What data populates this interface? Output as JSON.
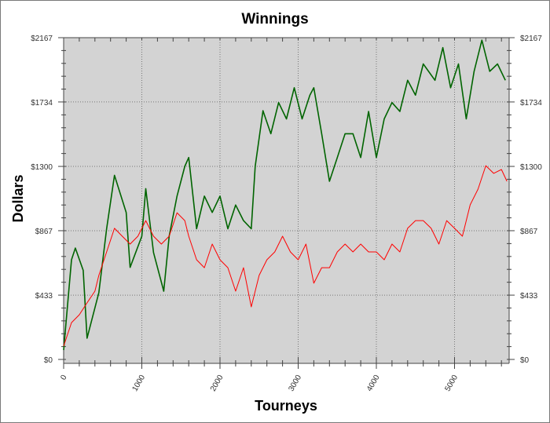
{
  "chart_data": {
    "type": "line",
    "title": "Winnings",
    "xlabel": "Tourneys",
    "ylabel": "Dollars",
    "xlim": [
      0,
      5700
    ],
    "ylim": [
      0,
      2167
    ],
    "x_ticks": [
      0,
      1000,
      2000,
      3000,
      4000,
      5000
    ],
    "y_ticks": [
      0,
      433,
      867,
      1300,
      1734,
      2167
    ],
    "y_tick_labels": [
      "$0",
      "$433",
      "$867",
      "$1300",
      "$1734",
      "$2167"
    ],
    "grid": true,
    "background": "#d3d3d3",
    "series": [
      {
        "color": "#006400",
        "x": [
          0,
          100,
          150,
          250,
          300,
          450,
          550,
          650,
          800,
          850,
          1000,
          1050,
          1150,
          1280,
          1350,
          1450,
          1550,
          1600,
          1700,
          1800,
          1900,
          2000,
          2100,
          2200,
          2300,
          2400,
          2450,
          2550,
          2650,
          2750,
          2850,
          2950,
          3050,
          3150,
          3200,
          3300,
          3400,
          3500,
          3600,
          3700,
          3800,
          3900,
          4000,
          4100,
          4200,
          4300,
          4400,
          4500,
          4600,
          4750,
          4850,
          4950,
          5050,
          5150,
          5250,
          5350,
          5450,
          5550,
          5650
        ],
        "y": [
          63,
          671,
          750,
          600,
          143,
          450,
          880,
          1240,
          990,
          620,
          830,
          1150,
          720,
          460,
          830,
          1100,
          1300,
          1360,
          880,
          1100,
          990,
          1100,
          880,
          1040,
          935,
          880,
          1300,
          1675,
          1520,
          1730,
          1620,
          1830,
          1620,
          1780,
          1830,
          1520,
          1200,
          1360,
          1520,
          1520,
          1360,
          1670,
          1360,
          1620,
          1730,
          1670,
          1880,
          1780,
          1990,
          1880,
          2100,
          1830,
          1990,
          1620,
          1940,
          2150,
          1940,
          1990,
          1880
        ]
      },
      {
        "color": "#ff0000",
        "x": [
          0,
          100,
          200,
          300,
          400,
          450,
          550,
          650,
          750,
          850,
          950,
          1050,
          1150,
          1250,
          1350,
          1450,
          1550,
          1600,
          1700,
          1800,
          1900,
          2000,
          2100,
          2200,
          2300,
          2400,
          2500,
          2600,
          2700,
          2800,
          2900,
          3000,
          3100,
          3200,
          3300,
          3400,
          3500,
          3600,
          3700,
          3800,
          3900,
          4000,
          4100,
          4200,
          4300,
          4400,
          4500,
          4600,
          4700,
          4800,
          4900,
          5000,
          5100,
          5200,
          5300,
          5400,
          5500,
          5600,
          5670
        ],
        "y": [
          90,
          248,
          301,
          381,
          460,
          566,
          724,
          883,
          830,
          777,
          830,
          935,
          830,
          777,
          830,
          988,
          935,
          830,
          671,
          618,
          777,
          671,
          618,
          460,
          618,
          354,
          566,
          671,
          724,
          830,
          724,
          671,
          777,
          513,
          618,
          618,
          724,
          777,
          724,
          777,
          724,
          724,
          671,
          777,
          724,
          883,
          935,
          935,
          883,
          777,
          935,
          883,
          830,
          1041,
          1147,
          1305,
          1253,
          1279,
          1200
        ]
      }
    ]
  }
}
